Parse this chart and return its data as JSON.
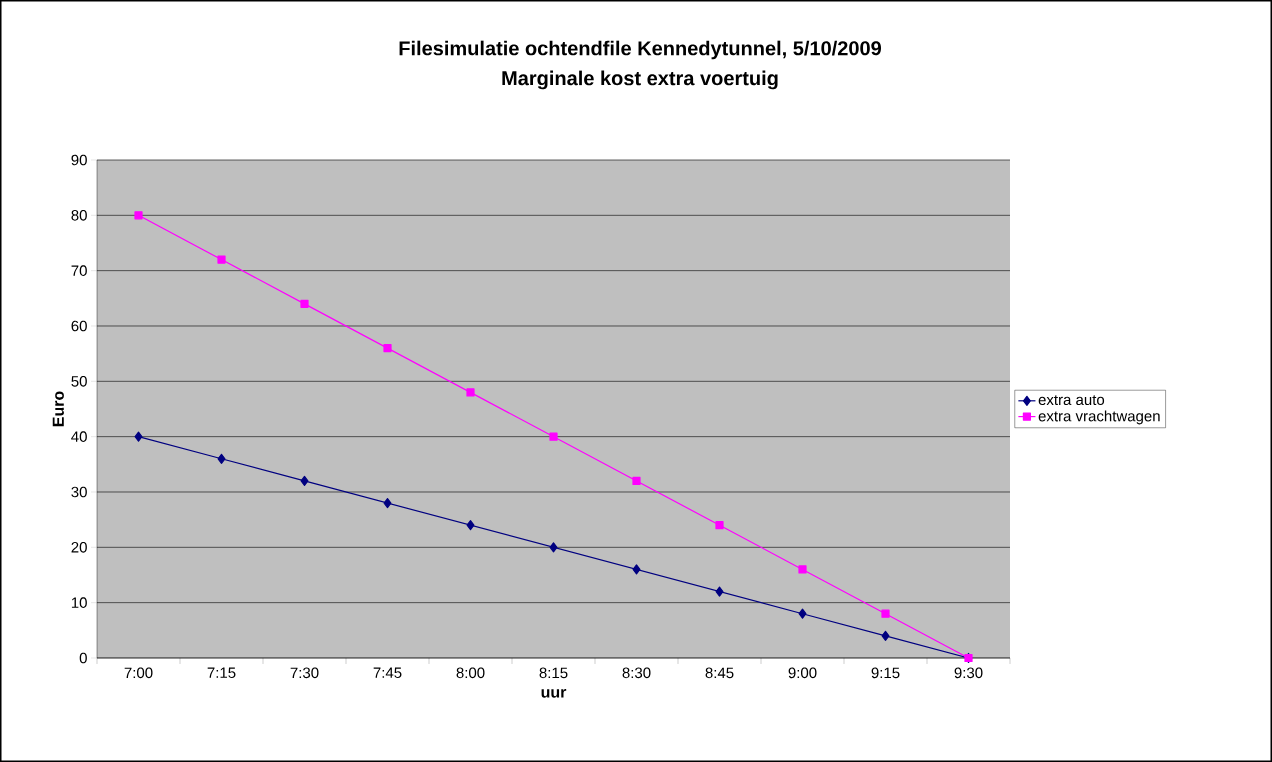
{
  "chart_data": {
    "type": "line",
    "title": "Filesimulatie ochtendfile Kennedytunnel, 5/10/2009",
    "subtitle": "Marginale kost extra voertuig",
    "xlabel": "uur",
    "ylabel": "Euro",
    "categories": [
      "7:00",
      "7:15",
      "7:30",
      "7:45",
      "8:00",
      "8:15",
      "8:30",
      "8:45",
      "9:00",
      "9:15",
      "9:30"
    ],
    "series": [
      {
        "name": "extra auto",
        "color": "#000080",
        "marker": "diamond",
        "values": [
          40,
          36,
          32,
          28,
          24,
          20,
          16,
          12,
          8,
          4,
          0
        ]
      },
      {
        "name": "extra vrachtwagen",
        "color": "#ff00ff",
        "marker": "square",
        "values": [
          80,
          72,
          64,
          56,
          48,
          40,
          32,
          24,
          16,
          8,
          0
        ]
      }
    ],
    "ylim": [
      0,
      90
    ],
    "yticks": [
      0,
      10,
      20,
      30,
      40,
      50,
      60,
      70,
      80,
      90
    ],
    "grid": "y",
    "legend": "right",
    "line_style": "solid"
  }
}
